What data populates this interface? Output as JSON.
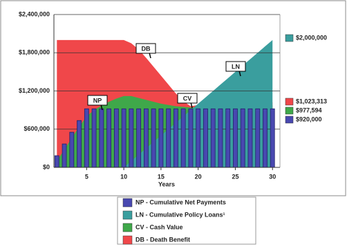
{
  "chart_data": {
    "type": "area",
    "x_label": "Years",
    "x": [
      1,
      2,
      3,
      4,
      5,
      6,
      7,
      8,
      9,
      10,
      11,
      12,
      13,
      14,
      15,
      16,
      17,
      18,
      19,
      20,
      21,
      22,
      23,
      24,
      25,
      26,
      27,
      28,
      29,
      30
    ],
    "xlim": [
      0.6,
      31
    ],
    "xticks": [
      5,
      10,
      15,
      20,
      25,
      30
    ],
    "ylim": [
      0,
      2400000
    ],
    "yticks": [
      {
        "value": 0,
        "label": "$0"
      },
      {
        "value": 600000,
        "label": "$600,000"
      },
      {
        "value": 1200000,
        "label": "$1,200,000"
      },
      {
        "value": 1800000,
        "label": "$1,800,000"
      },
      {
        "value": 2400000,
        "label": "$2,400,000"
      }
    ],
    "grid": true,
    "series": [
      {
        "name": "NP - Cumulative Net Payments",
        "callout": "NP",
        "type": "bar",
        "color": "#4848b0",
        "end_label": "$920,000",
        "values": [
          184000,
          368000,
          552000,
          736000,
          920000,
          920000,
          920000,
          920000,
          920000,
          920000,
          920000,
          920000,
          920000,
          920000,
          920000,
          920000,
          920000,
          920000,
          920000,
          920000,
          920000,
          920000,
          920000,
          920000,
          920000,
          920000,
          920000,
          920000,
          920000,
          920000
        ]
      },
      {
        "name": "LN - Cumulative Policy Loans¹",
        "callout": "LN",
        "type": "area",
        "color": "#3a9e9e",
        "end_label": "$2,000,000",
        "values": [
          0,
          0,
          0,
          0,
          0,
          0,
          0,
          0,
          0,
          0,
          100000,
          200000,
          300000,
          400000,
          500000,
          600000,
          700000,
          800000,
          900000,
          1000000,
          1100000,
          1200000,
          1300000,
          1400000,
          1500000,
          1600000,
          1700000,
          1800000,
          1900000,
          2000000
        ]
      },
      {
        "name": "CV - Cash Value",
        "callout": "CV",
        "type": "area",
        "color": "#3fa84a",
        "end_label": "$977,594",
        "values": [
          100000,
          280000,
          460000,
          640000,
          800000,
          900000,
          970000,
          1030000,
          1080000,
          1120000,
          1120000,
          1090000,
          1060000,
          1030000,
          1000000,
          980000,
          960000,
          950000,
          940000,
          945000,
          950000,
          955000,
          958000,
          962000,
          965000,
          968000,
          971000,
          973000,
          975000,
          977594
        ]
      },
      {
        "name": "DB - Death Benefit",
        "callout": "DB",
        "type": "area",
        "color": "#f0474a",
        "end_label": "$1,023,313",
        "values": [
          2000000,
          2000000,
          2000000,
          2000000,
          2000000,
          2000000,
          2000000,
          2000000,
          2000000,
          2000000,
          1950000,
          1850000,
          1720000,
          1580000,
          1440000,
          1300000,
          1160000,
          1040000,
          960000,
          980000,
          1000000,
          1010000,
          1015000,
          1018000,
          1020000,
          1021000,
          1022000,
          1022500,
          1023000,
          1023313
        ]
      }
    ]
  }
}
